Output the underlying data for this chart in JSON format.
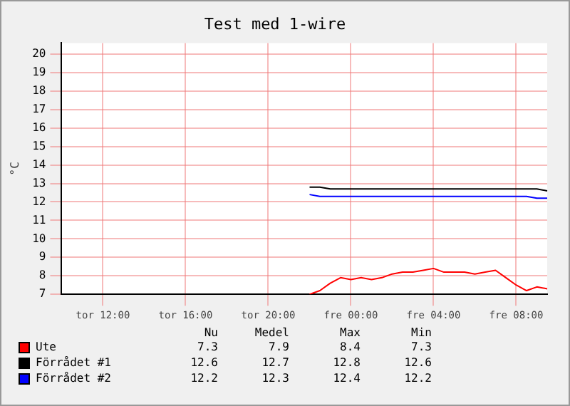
{
  "chart_data": {
    "type": "line",
    "title": "Test med 1-wire",
    "ylabel": "°C",
    "categories": [
      null,
      null,
      null,
      null,
      "tor 12:00",
      null,
      null,
      null,
      null,
      null,
      null,
      null,
      "tor 16:00",
      null,
      null,
      null,
      null,
      null,
      null,
      null,
      "tor 20:00",
      null,
      null,
      null,
      null,
      null,
      null,
      null,
      "fre 00:00",
      null,
      null,
      null,
      null,
      null,
      null,
      null,
      "fre 04:00",
      null,
      null,
      null,
      null,
      null,
      null,
      null,
      "fre 08:00",
      null,
      null,
      null
    ],
    "ylim": [
      7,
      20.6
    ],
    "yticks": [
      7,
      8,
      9,
      10,
      11,
      12,
      13,
      14,
      15,
      16,
      17,
      18,
      19,
      20
    ],
    "grid": true,
    "legend": "bottom",
    "series": [
      {
        "name": "Ute",
        "color": "#ff0000",
        "values": [
          null,
          null,
          null,
          null,
          null,
          null,
          null,
          null,
          null,
          null,
          null,
          null,
          null,
          null,
          null,
          null,
          null,
          null,
          null,
          null,
          null,
          null,
          null,
          null,
          7.0,
          7.2,
          7.6,
          7.9,
          7.8,
          7.9,
          7.8,
          7.9,
          8.1,
          8.2,
          8.2,
          8.3,
          8.4,
          8.2,
          8.2,
          8.2,
          8.1,
          8.2,
          8.3,
          7.9,
          7.5,
          7.2,
          7.4,
          7.3
        ]
      },
      {
        "name": "Förrådet #1",
        "color": "#000000",
        "values": [
          null,
          null,
          null,
          null,
          null,
          null,
          null,
          null,
          null,
          null,
          null,
          null,
          null,
          null,
          null,
          null,
          null,
          null,
          null,
          null,
          null,
          null,
          null,
          null,
          12.8,
          12.8,
          12.7,
          12.7,
          12.7,
          12.7,
          12.7,
          12.7,
          12.7,
          12.7,
          12.7,
          12.7,
          12.7,
          12.7,
          12.7,
          12.7,
          12.7,
          12.7,
          12.7,
          12.7,
          12.7,
          12.7,
          12.7,
          12.6
        ]
      },
      {
        "name": "Förrådet #2",
        "color": "#0000ff",
        "values": [
          null,
          null,
          null,
          null,
          null,
          null,
          null,
          null,
          null,
          null,
          null,
          null,
          null,
          null,
          null,
          null,
          null,
          null,
          null,
          null,
          null,
          null,
          null,
          null,
          12.4,
          12.3,
          12.3,
          12.3,
          12.3,
          12.3,
          12.3,
          12.3,
          12.3,
          12.3,
          12.3,
          12.3,
          12.3,
          12.3,
          12.3,
          12.3,
          12.3,
          12.3,
          12.3,
          12.3,
          12.3,
          12.3,
          12.2,
          12.2
        ]
      }
    ],
    "annotations": [
      "Nu",
      "Medel",
      "Max",
      "Min",
      "7.3",
      "7.9",
      "8.4",
      "7.3",
      "12.6",
      "12.7",
      "12.8",
      "12.6",
      "12.2",
      "12.3",
      "12.4",
      "12.2"
    ]
  }
}
